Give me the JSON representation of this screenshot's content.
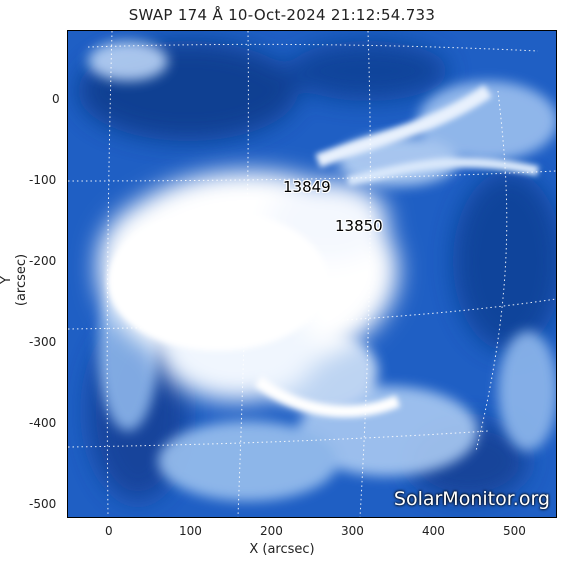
{
  "title": "SWAP 174 Å 10-Oct-2024 21:12:54.733",
  "axes": {
    "xlabel": "X (arcsec)",
    "ylabel": "Y (arcsec)",
    "xticks": [
      "0",
      "100",
      "200",
      "300",
      "400",
      "500"
    ],
    "yticks": [
      "0",
      "-100",
      "-200",
      "-300",
      "-400",
      "-500"
    ]
  },
  "active_regions": [
    {
      "label": "13849"
    },
    {
      "label": "13850"
    }
  ],
  "watermark": "SolarMonitor.org",
  "colors": {
    "background": "#1f5fc4",
    "bright": "#ffffff",
    "dark": "#0e3a8a"
  }
}
